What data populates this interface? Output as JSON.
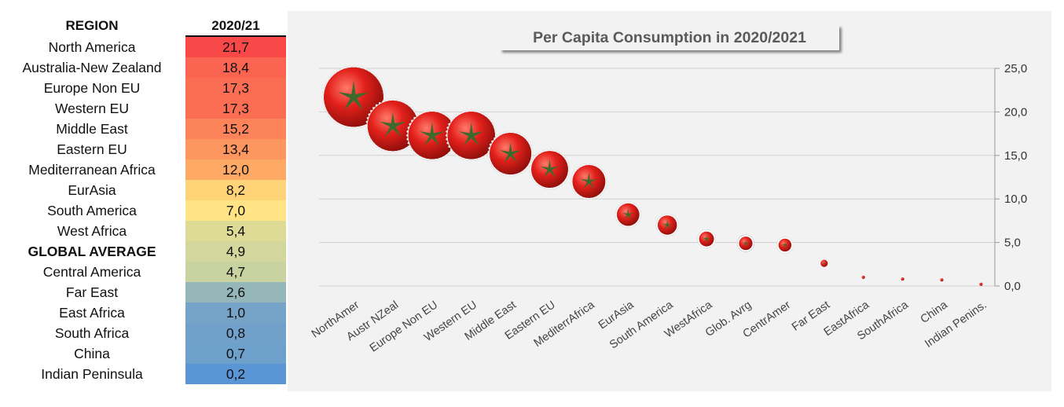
{
  "table": {
    "header_region": "REGION",
    "header_year": "2020/21",
    "rows": [
      {
        "region": "North America",
        "value": "21,7",
        "color": "#f84848",
        "bold": false
      },
      {
        "region": "Australia-New Zealand",
        "value": "18,4",
        "color": "#fa6451",
        "bold": false
      },
      {
        "region": "Europe Non EU",
        "value": "17,3",
        "color": "#fb6e54",
        "bold": false
      },
      {
        "region": "Western EU",
        "value": "17,3",
        "color": "#fb6e54",
        "bold": false
      },
      {
        "region": "Middle East",
        "value": "15,2",
        "color": "#fc835a",
        "bold": false
      },
      {
        "region": "Eastern EU",
        "value": "13,4",
        "color": "#fd965f",
        "bold": false
      },
      {
        "region": "Mediterranean Africa",
        "value": "12,0",
        "color": "#fea966",
        "bold": false
      },
      {
        "region": "EurAsia",
        "value": "8,2",
        "color": "#ffd479",
        "bold": false
      },
      {
        "region": "South America",
        "value": "7,0",
        "color": "#ffe385",
        "bold": false
      },
      {
        "region": "West Africa",
        "value": "5,4",
        "color": "#dedb96",
        "bold": false
      },
      {
        "region": "GLOBAL AVERAGE",
        "value": "4,9",
        "color": "#d3d69d",
        "bold": true
      },
      {
        "region": "Central America",
        "value": "4,7",
        "color": "#c9d3a2",
        "bold": false
      },
      {
        "region": "Far East",
        "value": "2,6",
        "color": "#96b7b9",
        "bold": false
      },
      {
        "region": "East Africa",
        "value": "1,0",
        "color": "#76a4c8",
        "bold": false
      },
      {
        "region": "South Africa",
        "value": "0,8",
        "color": "#71a1cb",
        "bold": false
      },
      {
        "region": "China",
        "value": "0,7",
        "color": "#6ea0cc",
        "bold": false
      },
      {
        "region": "Indian Peninsula",
        "value": "0,2",
        "color": "#5a96d6",
        "bold": false
      }
    ]
  },
  "chart_data": {
    "type": "scatter",
    "title": "Per Capita Consumption in 2020/2021",
    "categories": [
      "NorthAmer",
      "Austr NZeal",
      "Europe Non EU",
      "Western EU",
      "Middle East",
      "Eastern EU",
      "MediterrAfrica",
      "EurAsia",
      "South America",
      "WestAfrica",
      "Glob. Avrg",
      "CentrAmer",
      "Far East",
      "EastAfrica",
      "SouthAfrica",
      "China",
      "Indian Penins."
    ],
    "values": [
      21.7,
      18.4,
      17.3,
      17.3,
      15.2,
      13.4,
      12.0,
      8.2,
      7.0,
      5.4,
      4.9,
      4.7,
      2.6,
      1.0,
      0.8,
      0.7,
      0.2
    ],
    "highlight_index": 10,
    "marker": "tomato",
    "marker_size": "proportional to value",
    "ylim": [
      0,
      25
    ],
    "yticks": [
      "0,0",
      "5,0",
      "10,0",
      "15,0",
      "20,0",
      "25,0"
    ],
    "y_axis_position": "right",
    "grid": true,
    "legend": "none",
    "colors": {
      "tomato": "#e3201b",
      "leaf": "#3d6a2c",
      "highlight": "#5b9bd5",
      "grid": "#d0d0d0"
    }
  }
}
